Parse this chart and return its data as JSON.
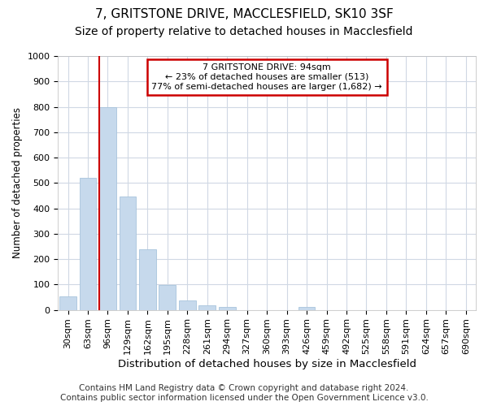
{
  "title_line1": "7, GRITSTONE DRIVE, MACCLESFIELD, SK10 3SF",
  "title_line2": "Size of property relative to detached houses in Macclesfield",
  "xlabel": "Distribution of detached houses by size in Macclesfield",
  "ylabel": "Number of detached properties",
  "footer_line1": "Contains HM Land Registry data © Crown copyright and database right 2024.",
  "footer_line2": "Contains public sector information licensed under the Open Government Licence v3.0.",
  "categories": [
    "30sqm",
    "63sqm",
    "96sqm",
    "129sqm",
    "162sqm",
    "195sqm",
    "228sqm",
    "261sqm",
    "294sqm",
    "327sqm",
    "360sqm",
    "393sqm",
    "426sqm",
    "459sqm",
    "492sqm",
    "525sqm",
    "558sqm",
    "591sqm",
    "624sqm",
    "657sqm",
    "690sqm"
  ],
  "values": [
    53,
    520,
    800,
    445,
    240,
    98,
    38,
    18,
    13,
    0,
    0,
    0,
    13,
    0,
    0,
    0,
    0,
    0,
    0,
    0,
    0
  ],
  "bar_color": "#c6d9ec",
  "bar_edge_color": "#a8c4dc",
  "vline_color": "#cc0000",
  "annotation_text": "7 GRITSTONE DRIVE: 94sqm\n← 23% of detached houses are smaller (513)\n77% of semi-detached houses are larger (1,682) →",
  "annotation_box_facecolor": "#ffffff",
  "annotation_box_edgecolor": "#cc0000",
  "ylim": [
    0,
    1000
  ],
  "yticks": [
    0,
    100,
    200,
    300,
    400,
    500,
    600,
    700,
    800,
    900,
    1000
  ],
  "bg_color": "#ffffff",
  "plot_bg_color": "#ffffff",
  "grid_color": "#d0d8e4",
  "title1_fontsize": 11,
  "title2_fontsize": 10,
  "xlabel_fontsize": 9.5,
  "ylabel_fontsize": 8.5,
  "tick_fontsize": 8,
  "ann_fontsize": 8,
  "footer_fontsize": 7.5
}
